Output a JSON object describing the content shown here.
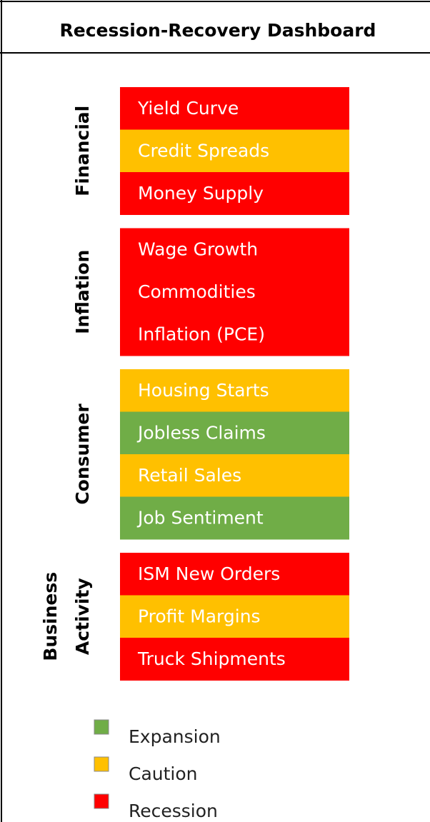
{
  "title": "Recession-Recovery Dashboard",
  "groups": [
    {
      "label": [
        "Financial"
      ],
      "items": [
        {
          "name": "Yield Curve",
          "status": "Recession"
        },
        {
          "name": "Credit Spreads",
          "status": "Caution"
        },
        {
          "name": "Money Supply",
          "status": "Recession"
        }
      ]
    },
    {
      "label": [
        "Inflation"
      ],
      "items": [
        {
          "name": "Wage Growth",
          "status": "Recession"
        },
        {
          "name": "Commodities",
          "status": "Recession"
        },
        {
          "name": "Inflation (PCE)",
          "status": "Recession"
        }
      ]
    },
    {
      "label": [
        "Consumer"
      ],
      "items": [
        {
          "name": "Housing Starts",
          "status": "Caution"
        },
        {
          "name": "Jobless Claims",
          "status": "Expansion"
        },
        {
          "name": "Retail Sales",
          "status": "Caution"
        },
        {
          "name": "Job Sentiment",
          "status": "Expansion"
        }
      ]
    },
    {
      "label": [
        "Business",
        "Activity"
      ],
      "items": [
        {
          "name": "ISM New Orders",
          "status": "Recession"
        },
        {
          "name": "Profit Margins",
          "status": "Caution"
        },
        {
          "name": "Truck Shipments",
          "status": "Recession"
        }
      ]
    }
  ],
  "legend": [
    {
      "name": "Expansion",
      "color": "#70ad47"
    },
    {
      "name": "Caution",
      "color": "#ffc000"
    },
    {
      "name": "Recession",
      "color": "#ff0000"
    }
  ]
}
